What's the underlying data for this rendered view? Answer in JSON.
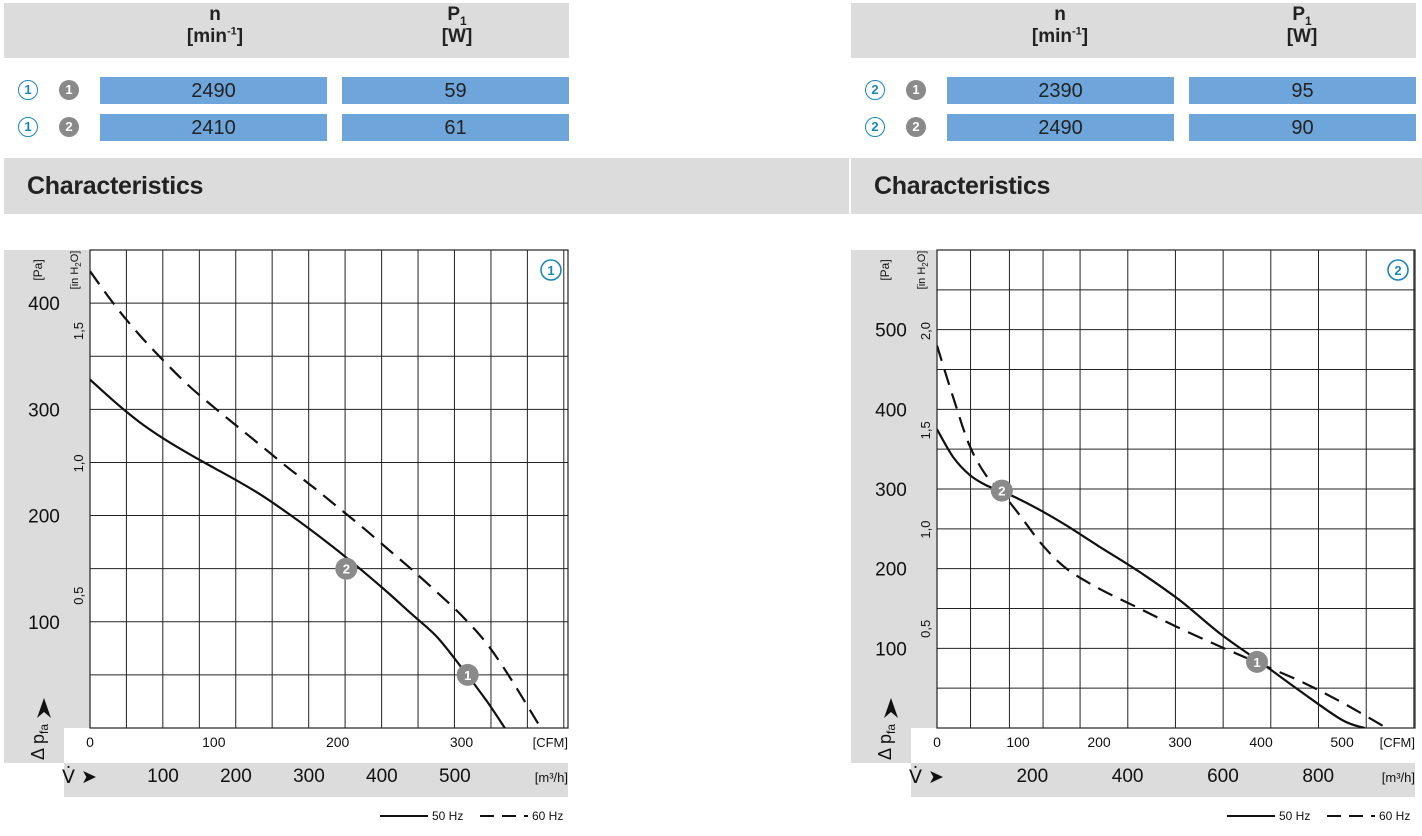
{
  "panels": [
    {
      "id": "1",
      "header": {
        "n_symbol": "n",
        "n_unit_base": "[min",
        "n_unit_exp": "-1",
        "n_unit_close": "]",
        "p_symbol": "P",
        "p_sub": "1",
        "p_unit": "[W]"
      },
      "rows": [
        {
          "curve_label": "1",
          "point_label": "1",
          "n": "2490",
          "p1": "59"
        },
        {
          "curve_label": "1",
          "point_label": "2",
          "n": "2410",
          "p1": "61"
        }
      ],
      "section_title": "Characteristics"
    },
    {
      "id": "2",
      "header": {
        "n_symbol": "n",
        "n_unit_base": "[min",
        "n_unit_exp": "-1",
        "n_unit_close": "]",
        "p_symbol": "P",
        "p_sub": "1",
        "p_unit": "[W]"
      },
      "rows": [
        {
          "curve_label": "2",
          "point_label": "1",
          "n": "2390",
          "p1": "95"
        },
        {
          "curve_label": "2",
          "point_label": "2",
          "n": "2490",
          "p1": "90"
        }
      ],
      "section_title": "Characteristics"
    }
  ],
  "chart_data": [
    {
      "type": "line",
      "chart_label": "1",
      "x": {
        "unit": "[CFM]",
        "ticks": [
          0,
          100,
          200,
          300
        ],
        "range": [
          0,
          386
        ]
      },
      "x2": {
        "unit": "[m³/h]",
        "symbol": "V̇ ➤",
        "ticks": [
          100,
          200,
          300,
          400,
          500
        ],
        "range": [
          0,
          655
        ]
      },
      "y": {
        "unit": "[Pa]",
        "symbol": "Δ p",
        "symbol_sub": "fa",
        "ticks": [
          100,
          200,
          300,
          400
        ],
        "range": [
          0,
          450
        ]
      },
      "y2": {
        "unit_prefix": "[in H",
        "unit_sub": "2",
        "unit_suffix": "O]",
        "ticks": [
          "0,5",
          "1,0",
          "1,5"
        ],
        "tick_values": [
          0.5,
          1.0,
          1.5
        ]
      },
      "grid_x_cfm": [
        0,
        29.4,
        58.8,
        88.3,
        117.7,
        147.1,
        176.6,
        206,
        235.5,
        264.9,
        294.3,
        323.8,
        353.2,
        382.6
      ],
      "grid_y_pa": [
        0,
        50,
        100,
        150,
        200,
        250,
        300,
        350,
        400,
        450
      ],
      "series": [
        {
          "name": "50 Hz",
          "style": "solid",
          "x": [
            0,
            20,
            40,
            60,
            80,
            100,
            120,
            140,
            160,
            180,
            200,
            220,
            240,
            260,
            280,
            300,
            320,
            335
          ],
          "y": [
            328,
            307,
            288,
            272,
            258,
            245,
            232,
            218,
            202,
            185,
            167,
            148,
            128,
            107,
            86,
            57,
            26,
            0
          ]
        },
        {
          "name": "60 Hz",
          "style": "dashed",
          "x": [
            0,
            20,
            40,
            60,
            80,
            100,
            120,
            140,
            160,
            180,
            200,
            220,
            240,
            260,
            280,
            300,
            320,
            340,
            364
          ],
          "y": [
            430,
            398,
            370,
            345,
            322,
            302,
            283,
            264,
            245,
            227,
            208,
            189,
            169,
            149,
            128,
            106,
            80,
            46,
            0
          ]
        }
      ],
      "operating_points": [
        {
          "label": "1",
          "x": 305,
          "y": 50
        },
        {
          "label": "2",
          "x": 207,
          "y": 150
        }
      ],
      "legend": [
        {
          "label": "50 Hz",
          "style": "solid"
        },
        {
          "label": "60 Hz",
          "style": "dashed"
        }
      ],
      "legend_position": "bottom-right",
      "grid": true
    },
    {
      "type": "line",
      "chart_label": "2",
      "x": {
        "unit": "[CFM]",
        "ticks": [
          0,
          100,
          200,
          300,
          400,
          500
        ],
        "range": [
          0,
          590
        ]
      },
      "x2": {
        "unit": "[m³/h]",
        "symbol": "V̇ ➤",
        "ticks": [
          200,
          400,
          600,
          800
        ],
        "range": [
          0,
          1003
        ]
      },
      "y": {
        "unit": "[Pa]",
        "symbol": "Δ p",
        "symbol_sub": "fa",
        "ticks": [
          100,
          200,
          300,
          400,
          500
        ],
        "range": [
          0,
          600
        ]
      },
      "y2": {
        "unit_prefix": "[in H",
        "unit_sub": "2",
        "unit_suffix": "O]",
        "ticks": [
          "0,5",
          "1,0",
          "1,5",
          "2,0"
        ],
        "tick_values": [
          0.5,
          1.0,
          1.5,
          2.0
        ]
      },
      "grid_x_cfm": [
        0,
        41.4,
        89.4,
        130.9,
        176.6,
        235.5,
        294.3,
        353.2,
        412,
        470.9,
        529.8,
        588.6
      ],
      "grid_y_pa": [
        0,
        50,
        100,
        150,
        200,
        250,
        300,
        350,
        400,
        450,
        500,
        550,
        600
      ],
      "series": [
        {
          "name": "50 Hz",
          "style": "solid",
          "x": [
            0,
            20,
            40,
            60,
            78,
            100,
            130,
            160,
            200,
            250,
            300,
            350,
            400,
            450,
            500,
            528
          ],
          "y": [
            375,
            340,
            318,
            305,
            298,
            288,
            272,
            254,
            228,
            196,
            160,
            118,
            82,
            45,
            10,
            0
          ]
        },
        {
          "name": "60 Hz",
          "style": "dashed",
          "x": [
            0,
            20,
            40,
            60,
            78,
            100,
            130,
            160,
            200,
            250,
            300,
            350,
            400,
            450,
            500,
            555
          ],
          "y": [
            480,
            415,
            355,
            318,
            298,
            270,
            230,
            200,
            175,
            150,
            125,
            102,
            80,
            58,
            32,
            0
          ]
        }
      ],
      "operating_points": [
        {
          "label": "1",
          "x": 395,
          "y": 83
        },
        {
          "label": "2",
          "x": 80,
          "y": 298
        }
      ],
      "legend": [
        {
          "label": "50 Hz",
          "style": "solid"
        },
        {
          "label": "60 Hz",
          "style": "dashed"
        }
      ],
      "legend_position": "bottom-right",
      "grid": true
    }
  ],
  "colors": {
    "header_bg": "#dcdcdc",
    "cell_bg": "#6ea6dc",
    "curve_label_color": "#1a86b8",
    "point_marker": "#8a8a8a",
    "grid": "#1a1a1a",
    "curve": "#111111"
  }
}
